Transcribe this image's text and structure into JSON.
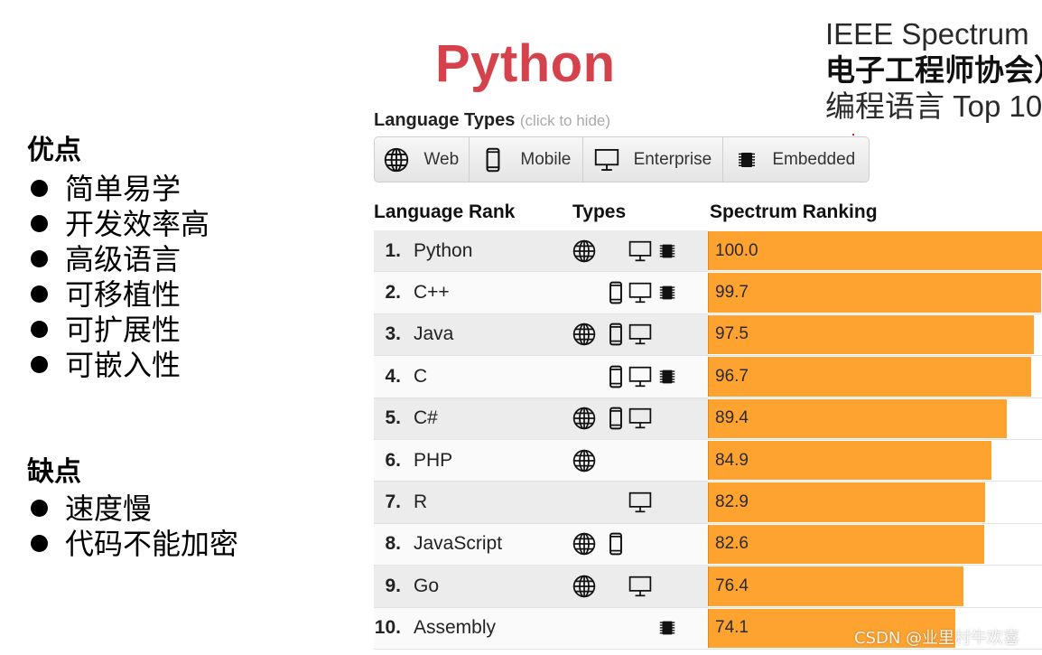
{
  "pros": {
    "heading": "优点",
    "items": [
      "简单易学",
      "开发效率高",
      "高级语言",
      "可移植性",
      "可扩展性",
      "可嵌入性"
    ]
  },
  "cons": {
    "heading": "缺点",
    "items": [
      "速度慢",
      "代码不能加密"
    ]
  },
  "title": "Python",
  "ieee": {
    "line1": "IEEE Spectrum（",
    "line2": "电子工程师协会）",
    "line3": "编程语言 Top 10"
  },
  "language_types": {
    "label": "Language Types",
    "hint": "(click to hide)",
    "buttons": [
      {
        "label": "Web",
        "icon": "globe-icon"
      },
      {
        "label": "Mobile",
        "icon": "phone-icon"
      },
      {
        "label": "Enterprise",
        "icon": "monitor-icon"
      },
      {
        "label": "Embedded",
        "icon": "chip-icon"
      }
    ]
  },
  "table_headers": {
    "rank": "Language Rank",
    "types": "Types",
    "ranking": "Spectrum Ranking"
  },
  "watermark": "CSDN @业里村牛欢喜",
  "colors": {
    "title": "#d5424c",
    "bar": "#ffa330"
  },
  "chart_data": {
    "type": "bar",
    "orientation": "horizontal",
    "title": "",
    "xlim": [
      0,
      100
    ],
    "categories": [
      "Python",
      "C++",
      "Java",
      "C",
      "C#",
      "PHP",
      "R",
      "JavaScript",
      "Go",
      "Assembly"
    ],
    "ranks": [
      "1.",
      "2.",
      "3.",
      "4.",
      "5.",
      "6.",
      "7.",
      "8.",
      "9.",
      "10."
    ],
    "values": [
      100.0,
      99.7,
      97.5,
      96.7,
      89.4,
      84.9,
      82.9,
      82.6,
      76.4,
      74.1
    ],
    "value_labels": [
      "100.0",
      "99.7",
      "97.5",
      "96.7",
      "89.4",
      "84.9",
      "82.9",
      "82.6",
      "76.4",
      "74.1"
    ],
    "types": [
      [
        "web",
        "enterprise",
        "embedded"
      ],
      [
        "mobile",
        "enterprise",
        "embedded"
      ],
      [
        "web",
        "mobile",
        "enterprise"
      ],
      [
        "mobile",
        "enterprise",
        "embedded"
      ],
      [
        "web",
        "mobile",
        "enterprise"
      ],
      [
        "web"
      ],
      [
        "enterprise"
      ],
      [
        "web",
        "mobile"
      ],
      [
        "web",
        "enterprise"
      ],
      [
        "embedded"
      ]
    ]
  }
}
